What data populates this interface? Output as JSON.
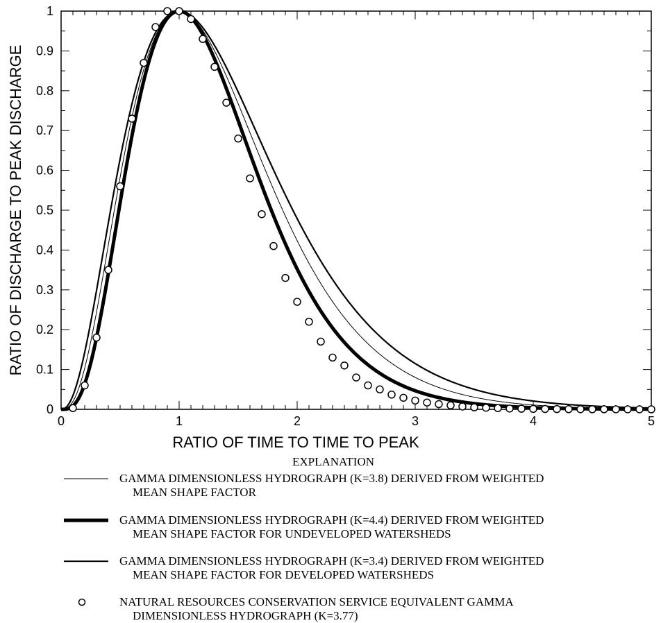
{
  "chart_data": {
    "type": "line",
    "xlabel": "RATIO OF TIME TO TIME TO PEAK",
    "ylabel": "RATIO OF DISCHARGE TO PEAK DISCHARGE",
    "xlim": [
      0,
      5
    ],
    "ylim": [
      0,
      1
    ],
    "x_ticks": [
      "0",
      "1",
      "2",
      "3",
      "4",
      "5"
    ],
    "y_ticks": [
      "0",
      "0.1",
      "0.2",
      "0.3",
      "0.4",
      "0.5",
      "0.6",
      "0.7",
      "0.8",
      "0.9",
      "1"
    ],
    "grid": false,
    "legend_title": "EXPLANATION",
    "legend_placement": "bottom",
    "series": [
      {
        "key": "k38",
        "label_line1": "GAMMA DIMENSIONLESS HYDROGRAPH (K=3.8) DERIVED FROM WEIGHTED",
        "label_line2": "MEAN SHAPE FACTOR",
        "style": "thin-line",
        "k": 3.8
      },
      {
        "key": "k44",
        "label_line1": "GAMMA DIMENSIONLESS HYDROGRAPH (K=4.4) DERIVED FROM WEIGHTED",
        "label_line2": "MEAN SHAPE FACTOR FOR UNDEVELOPED WATERSHEDS",
        "style": "thick-line",
        "k": 4.4
      },
      {
        "key": "k34",
        "label_line1": "GAMMA DIMENSIONLESS HYDROGRAPH (K=3.4) DERIVED FROM WEIGHTED",
        "label_line2": "MEAN SHAPE FACTOR FOR DEVELOPED WATERSHEDS",
        "style": "medium-line",
        "k": 3.4
      },
      {
        "key": "nrcs",
        "label_line1": "NATURAL RESOURCES CONSERVATION SERVICE EQUIVALENT GAMMA",
        "label_line2": "DIMENSIONLESS HYDROGRAPH (K=3.77)",
        "style": "open-circle",
        "k": 3.77,
        "x": [
          0.1,
          0.2,
          0.3,
          0.4,
          0.5,
          0.6,
          0.7,
          0.8,
          0.9,
          1.0,
          1.1,
          1.2,
          1.3,
          1.4,
          1.5,
          1.6,
          1.7,
          1.8,
          1.9,
          2.0,
          2.1,
          2.2,
          2.3,
          2.4,
          2.5,
          2.6,
          2.7,
          2.8,
          2.9,
          3.0,
          3.1,
          3.2,
          3.3,
          3.4,
          3.5,
          3.6,
          3.7,
          3.8,
          3.9,
          4.0,
          4.1,
          4.2,
          4.3,
          4.4,
          4.5,
          4.6,
          4.7,
          4.8,
          4.9,
          5.0
        ],
        "y": [
          0.003,
          0.06,
          0.18,
          0.35,
          0.56,
          0.73,
          0.87,
          0.96,
          1.0,
          1.0,
          0.98,
          0.93,
          0.86,
          0.77,
          0.68,
          0.58,
          0.49,
          0.41,
          0.33,
          0.27,
          0.22,
          0.17,
          0.13,
          0.11,
          0.08,
          0.06,
          0.05,
          0.037,
          0.029,
          0.022,
          0.017,
          0.013,
          0.01,
          0.007,
          0.005,
          0.004,
          0.003,
          0.002,
          0.0015,
          0.001,
          0.0008,
          0.0006,
          0.0004,
          0.0003,
          0.0002,
          0.0002,
          0.0001,
          0.0001,
          0.0001,
          0.0
        ]
      }
    ]
  }
}
